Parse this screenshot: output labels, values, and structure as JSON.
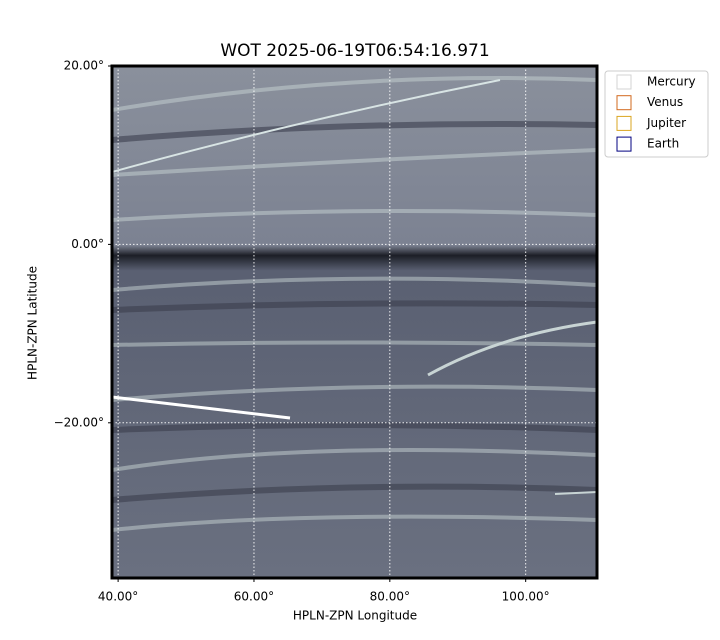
{
  "chart_data": {
    "type": "image",
    "title": "WOT 2025-06-19T06:54:16.971",
    "x_label": "HPLN-ZPN Longitude",
    "y_label": "HPLN-ZPN Latitude",
    "xlim": [
      39.1,
      110.5
    ],
    "ylim": [
      -37.4,
      20
    ],
    "xticks": [
      {
        "value": 40,
        "label": "40.00°"
      },
      {
        "value": 60,
        "label": "60.00°"
      },
      {
        "value": 80,
        "label": "80.00°"
      },
      {
        "value": 100,
        "label": "100.00°"
      }
    ],
    "yticks": [
      {
        "value": -20,
        "label": "−20.00°"
      },
      {
        "value": 0,
        "label": "0.00°"
      },
      {
        "value": 20,
        "label": "20.00°"
      }
    ],
    "grid": true,
    "legend_position": "outside-right",
    "series": [
      {
        "name": "Mercury",
        "color": "#d3d3d3"
      },
      {
        "name": "Venus",
        "color": "#d2691e"
      },
      {
        "name": "Jupiter",
        "color": "#daa520"
      },
      {
        "name": "Earth",
        "color": "#000080"
      }
    ]
  }
}
